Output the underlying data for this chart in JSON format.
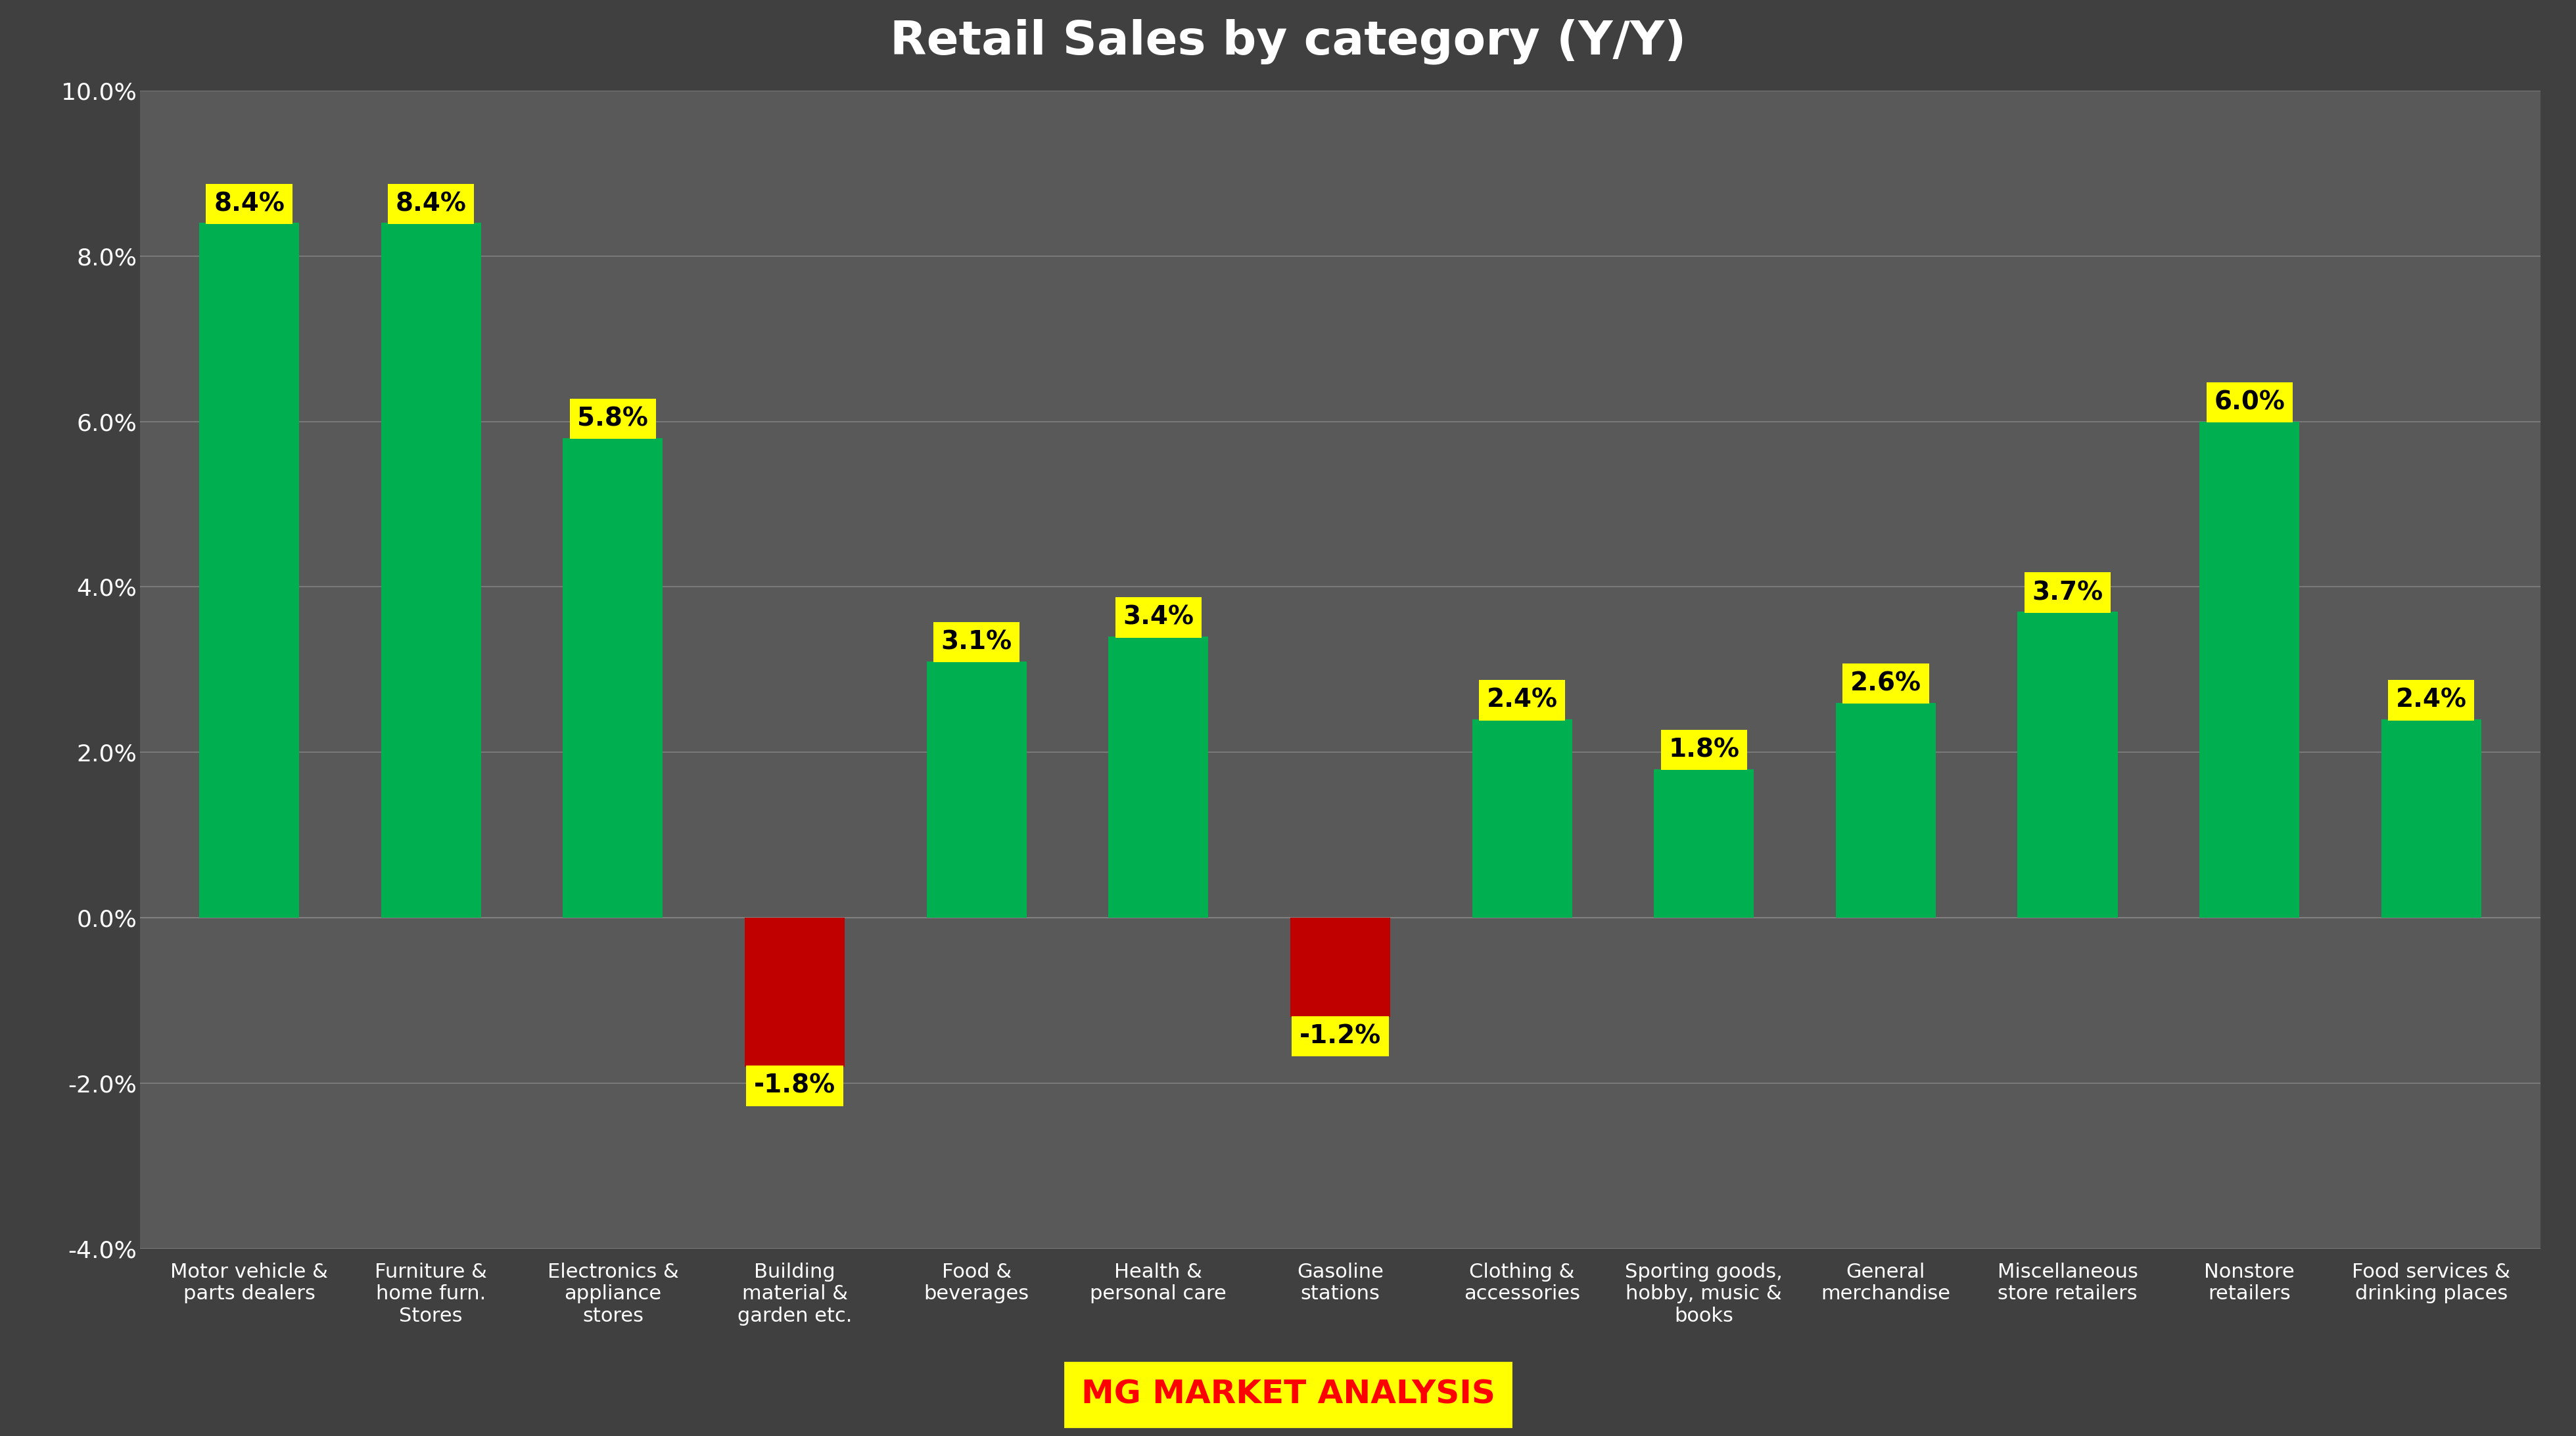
{
  "title": "Retail Sales by category (Y/Y)",
  "categories": [
    "Motor vehicle &\nparts dealers",
    "Furniture &\nhome furn.\nStores",
    "Electronics &\nappliance\nstores",
    "Building\nmaterial &\ngarden etc.",
    "Food &\nbeverages",
    "Health &\npersonal care",
    "Gasoline\nstations",
    "Clothing &\naccessories",
    "Sporting goods,\nhobby, music &\nbooks",
    "General\nmerchandise",
    "Miscellaneous\nstore retailers",
    "Nonstore\nretailers",
    "Food services &\ndrinking places"
  ],
  "values": [
    8.4,
    8.4,
    5.8,
    -1.8,
    3.1,
    3.4,
    -1.2,
    2.4,
    1.8,
    2.6,
    3.7,
    6.0,
    2.4
  ],
  "bar_colors_positive": "#00b050",
  "bar_colors_negative": "#c00000",
  "label_bg_color": "#ffff00",
  "label_text_color": "#000000",
  "title_color": "#ffffff",
  "background_color": "#404040",
  "plot_bg_color": "#595959",
  "grid_color": "#808080",
  "tick_label_color": "#ffffff",
  "ylim": [
    -4.0,
    10.0
  ],
  "yticks": [
    -4.0,
    -2.0,
    0.0,
    2.0,
    4.0,
    6.0,
    8.0,
    10.0
  ],
  "footer_text": "MG MARKET ANALYSIS",
  "footer_bg": "#ffff00",
  "footer_text_color": "#ff0000"
}
